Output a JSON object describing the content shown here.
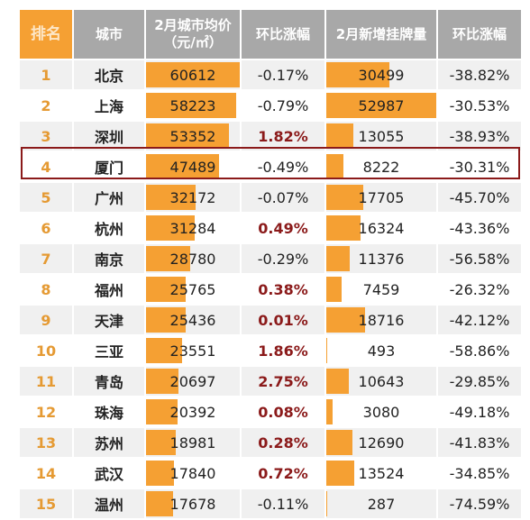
{
  "headers": {
    "rank": "排名",
    "city": "城市",
    "price_line1": "2月城市均价",
    "price_line2": "（元/㎡）",
    "price_mom": "环比涨幅",
    "listings": "2月新增挂牌量",
    "listings_mom": "环比涨幅"
  },
  "rows": [
    {
      "rank": "1",
      "city": "北京",
      "price": "60612",
      "price_mom": "-0.17%",
      "listings": "30499",
      "listings_mom": "-38.82%"
    },
    {
      "rank": "2",
      "city": "上海",
      "price": "58223",
      "price_mom": "-0.79%",
      "listings": "52987",
      "listings_mom": "-30.53%"
    },
    {
      "rank": "3",
      "city": "深圳",
      "price": "53352",
      "price_mom": "1.82%",
      "listings": "13055",
      "listings_mom": "-38.93%"
    },
    {
      "rank": "4",
      "city": "厦门",
      "price": "47489",
      "price_mom": "-0.49%",
      "listings": "8222",
      "listings_mom": "-30.31%"
    },
    {
      "rank": "5",
      "city": "广州",
      "price": "32172",
      "price_mom": "-0.07%",
      "listings": "17705",
      "listings_mom": "-45.70%"
    },
    {
      "rank": "6",
      "city": "杭州",
      "price": "31284",
      "price_mom": "0.49%",
      "listings": "16324",
      "listings_mom": "-43.36%"
    },
    {
      "rank": "7",
      "city": "南京",
      "price": "28780",
      "price_mom": "-0.29%",
      "listings": "11376",
      "listings_mom": "-56.58%"
    },
    {
      "rank": "8",
      "city": "福州",
      "price": "25765",
      "price_mom": "0.38%",
      "listings": "7459",
      "listings_mom": "-26.32%"
    },
    {
      "rank": "9",
      "city": "天津",
      "price": "25436",
      "price_mom": "0.01%",
      "listings": "18716",
      "listings_mom": "-42.12%"
    },
    {
      "rank": "10",
      "city": "三亚",
      "price": "23551",
      "price_mom": "1.86%",
      "listings": "493",
      "listings_mom": "-58.86%"
    },
    {
      "rank": "11",
      "city": "青岛",
      "price": "20697",
      "price_mom": "2.75%",
      "listings": "10643",
      "listings_mom": "-29.85%"
    },
    {
      "rank": "12",
      "city": "珠海",
      "price": "20392",
      "price_mom": "0.08%",
      "listings": "3080",
      "listings_mom": "-49.18%"
    },
    {
      "rank": "13",
      "city": "苏州",
      "price": "18981",
      "price_mom": "0.28%",
      "listings": "12690",
      "listings_mom": "-41.83%"
    },
    {
      "rank": "14",
      "city": "武汉",
      "price": "17840",
      "price_mom": "0.72%",
      "listings": "13524",
      "listings_mom": "-34.85%"
    },
    {
      "rank": "15",
      "city": "温州",
      "price": "17678",
      "price_mom": "-0.11%",
      "listings": "287",
      "listings_mom": "-74.59%"
    }
  ],
  "highlight_rank": "4",
  "colors": {
    "bar": "#f5a033",
    "header_rank": "#f5a033",
    "header": "#a8a8a8",
    "positive_change": "#8b1a1a",
    "highlight_border": "#8b1a1a"
  },
  "chart_data": {
    "type": "table",
    "columns": [
      "排名",
      "城市",
      "2月城市均价（元/㎡）",
      "环比涨幅",
      "2月新增挂牌量",
      "环比涨幅"
    ],
    "categories": [
      "北京",
      "上海",
      "深圳",
      "厦门",
      "广州",
      "杭州",
      "南京",
      "福州",
      "天津",
      "三亚",
      "青岛",
      "珠海",
      "苏州",
      "武汉",
      "温州"
    ],
    "series": [
      {
        "name": "2月城市均价（元/㎡）",
        "values": [
          60612,
          58223,
          53352,
          47489,
          32172,
          31284,
          28780,
          25765,
          25436,
          23551,
          20697,
          20392,
          18981,
          17840,
          17678
        ]
      },
      {
        "name": "环比涨幅",
        "values": [
          -0.17,
          -0.79,
          1.82,
          -0.49,
          -0.07,
          0.49,
          -0.29,
          0.38,
          0.01,
          1.86,
          2.75,
          0.08,
          0.28,
          0.72,
          -0.11
        ]
      },
      {
        "name": "2月新增挂牌量",
        "values": [
          30499,
          52987,
          13055,
          8222,
          17705,
          16324,
          11376,
          7459,
          18716,
          493,
          10643,
          3080,
          12690,
          13524,
          287
        ]
      },
      {
        "name": "环比涨幅",
        "values": [
          -38.82,
          -30.53,
          -38.93,
          -30.31,
          -45.7,
          -43.36,
          -56.58,
          -26.32,
          -42.12,
          -58.86,
          -29.85,
          -49.18,
          -41.83,
          -34.85,
          -74.59
        ]
      }
    ]
  }
}
